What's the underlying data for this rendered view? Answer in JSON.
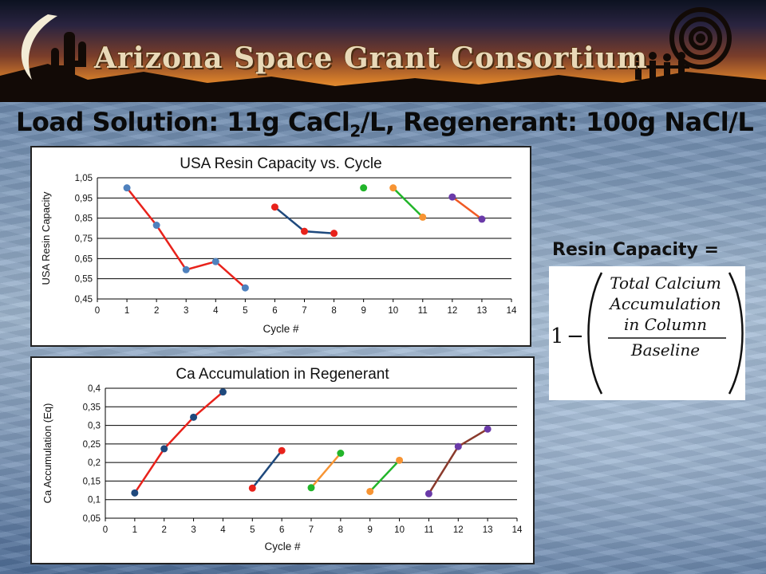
{
  "banner": {
    "title": "Arizona Space Grant Consortium"
  },
  "slide": {
    "title_part1": "Load Solution: 11g CaCl",
    "title_sub": "2",
    "title_part2": "/L, Regenerant: 100g NaCl/L"
  },
  "formula": {
    "label": "Resin Capacity =",
    "one": "1",
    "minus": "−",
    "numerator_line1": "Total Calcium",
    "numerator_line2": "Accumulation",
    "numerator_line3": "in Column",
    "denominator": "Baseline"
  },
  "colors": {
    "red": "#e8221b",
    "blue": "#1f497d",
    "green": "#22b52a",
    "orange": "#f79433",
    "purple": "#6a3aa8",
    "brown": "#8a3a2c"
  },
  "chart_data": [
    {
      "type": "line",
      "title": "USA Resin Capacity vs. Cycle",
      "xlabel": "Cycle #",
      "ylabel": "USA Resin Capacity",
      "xlim": [
        0,
        14
      ],
      "ylim": [
        0.45,
        1.05
      ],
      "xticks": [
        "0",
        "1",
        "2",
        "3",
        "4",
        "5",
        "6",
        "7",
        "8",
        "9",
        "10",
        "11",
        "12",
        "13",
        "14"
      ],
      "yticks": [
        "0,45",
        "0,55",
        "0,65",
        "0,75",
        "0,85",
        "0,95",
        "1,05"
      ],
      "grid": true,
      "series": [
        {
          "line": "#e8221b",
          "marker": "#4f81bd",
          "x": [
            1,
            2,
            3,
            4,
            5
          ],
          "y": [
            1.0,
            0.815,
            0.595,
            0.635,
            0.505
          ]
        },
        {
          "line": "#1f497d",
          "marker": "#e8221b",
          "x": [
            6,
            7,
            8
          ],
          "y": [
            0.905,
            0.785,
            0.775
          ]
        },
        {
          "line": "#22b52a",
          "marker": "#22b52a",
          "x": [
            9
          ],
          "y": [
            1.0
          ]
        },
        {
          "line": "#22b52a",
          "marker": "#f79433",
          "x": [
            10,
            11
          ],
          "y": [
            1.0,
            0.855
          ]
        },
        {
          "line": "#f05a24",
          "marker": "#6a3aa8",
          "x": [
            12,
            13
          ],
          "y": [
            0.955,
            0.845
          ]
        }
      ]
    },
    {
      "type": "line",
      "title": "Ca Accumulation in Regenerant",
      "xlabel": "Cycle #",
      "ylabel": "Ca Accumulation (Eq)",
      "xlim": [
        0,
        14
      ],
      "ylim": [
        0.05,
        0.4
      ],
      "xticks": [
        "0",
        "1",
        "2",
        "3",
        "4",
        "5",
        "6",
        "7",
        "8",
        "9",
        "10",
        "11",
        "12",
        "13",
        "14"
      ],
      "yticks": [
        "0,05",
        "0,1",
        "0,15",
        "0,2",
        "0,25",
        "0,3",
        "0,35",
        "0,4"
      ],
      "grid": true,
      "series": [
        {
          "line": "#e8221b",
          "marker": "#1f497d",
          "x": [
            1,
            2,
            3,
            4
          ],
          "y": [
            0.118,
            0.237,
            0.322,
            0.39
          ]
        },
        {
          "line": "#1f497d",
          "marker": "#e8221b",
          "x": [
            5,
            6
          ],
          "y": [
            0.131,
            0.232
          ]
        },
        {
          "line": "#f79433",
          "marker": "#22b52a",
          "x": [
            7,
            8
          ],
          "y": [
            0.132,
            0.225
          ]
        },
        {
          "line": "#22b52a",
          "marker": "#f79433",
          "x": [
            9,
            10
          ],
          "y": [
            0.122,
            0.206
          ]
        },
        {
          "line": "#8a3a2c",
          "marker": "#6a3aa8",
          "x": [
            11,
            12,
            13
          ],
          "y": [
            0.116,
            0.243,
            0.29
          ]
        }
      ]
    }
  ]
}
